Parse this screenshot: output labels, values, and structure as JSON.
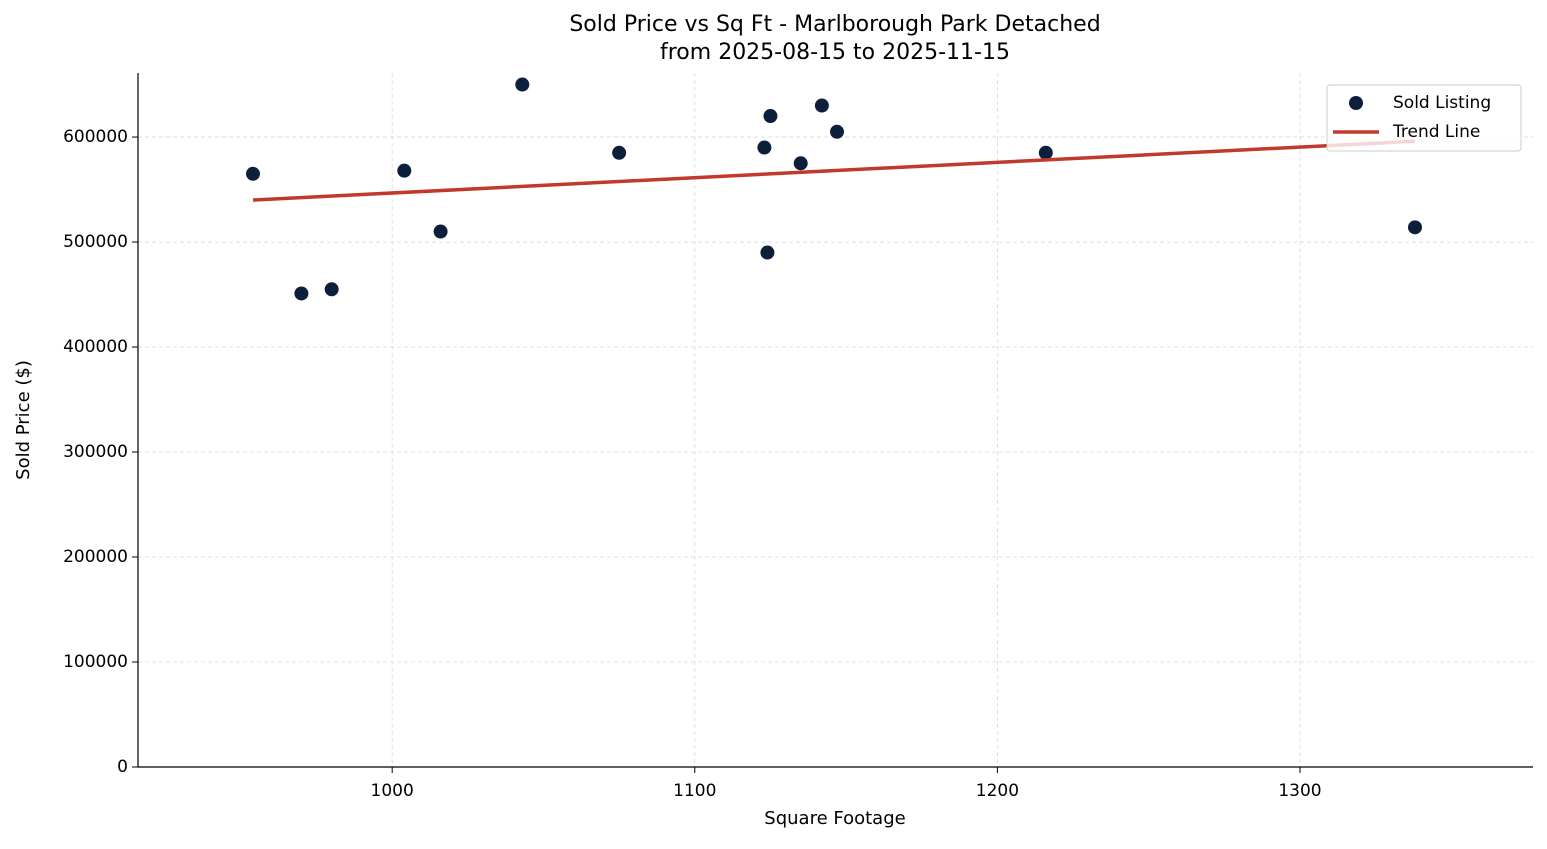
{
  "chart_data": {
    "type": "scatter",
    "title": "Sold Price vs Sq Ft - Marlborough Park Detached",
    "subtitle": "from 2025-08-15 to 2025-11-15",
    "x_label": "Square Footage",
    "y_label": "Sold Price ($)",
    "xlim": [
      916,
      1377
    ],
    "xticks": [
      1000,
      1100,
      1200,
      1300
    ],
    "ylim": [
      0,
      661000
    ],
    "yticks": [
      0,
      100000,
      200000,
      300000,
      400000,
      500000,
      600000
    ],
    "grid": true,
    "legend": "upper right",
    "series": [
      {
        "name": "Sold Listing",
        "type": "scatter",
        "color": "#0d1f3a",
        "x": [
          954,
          970,
          980,
          1004,
          1016,
          1043,
          1075,
          1123,
          1124,
          1125,
          1135,
          1142,
          1147,
          1216,
          1338
        ],
        "values": [
          565000,
          451000,
          455000,
          568000,
          510000,
          650000,
          585000,
          590000,
          490000,
          620000,
          575000,
          630000,
          605000,
          585000,
          514000
        ]
      },
      {
        "name": "Trend Line",
        "type": "line",
        "color": "#c0392b",
        "x": [
          954,
          1338
        ],
        "values": [
          540000,
          596000
        ]
      }
    ]
  }
}
